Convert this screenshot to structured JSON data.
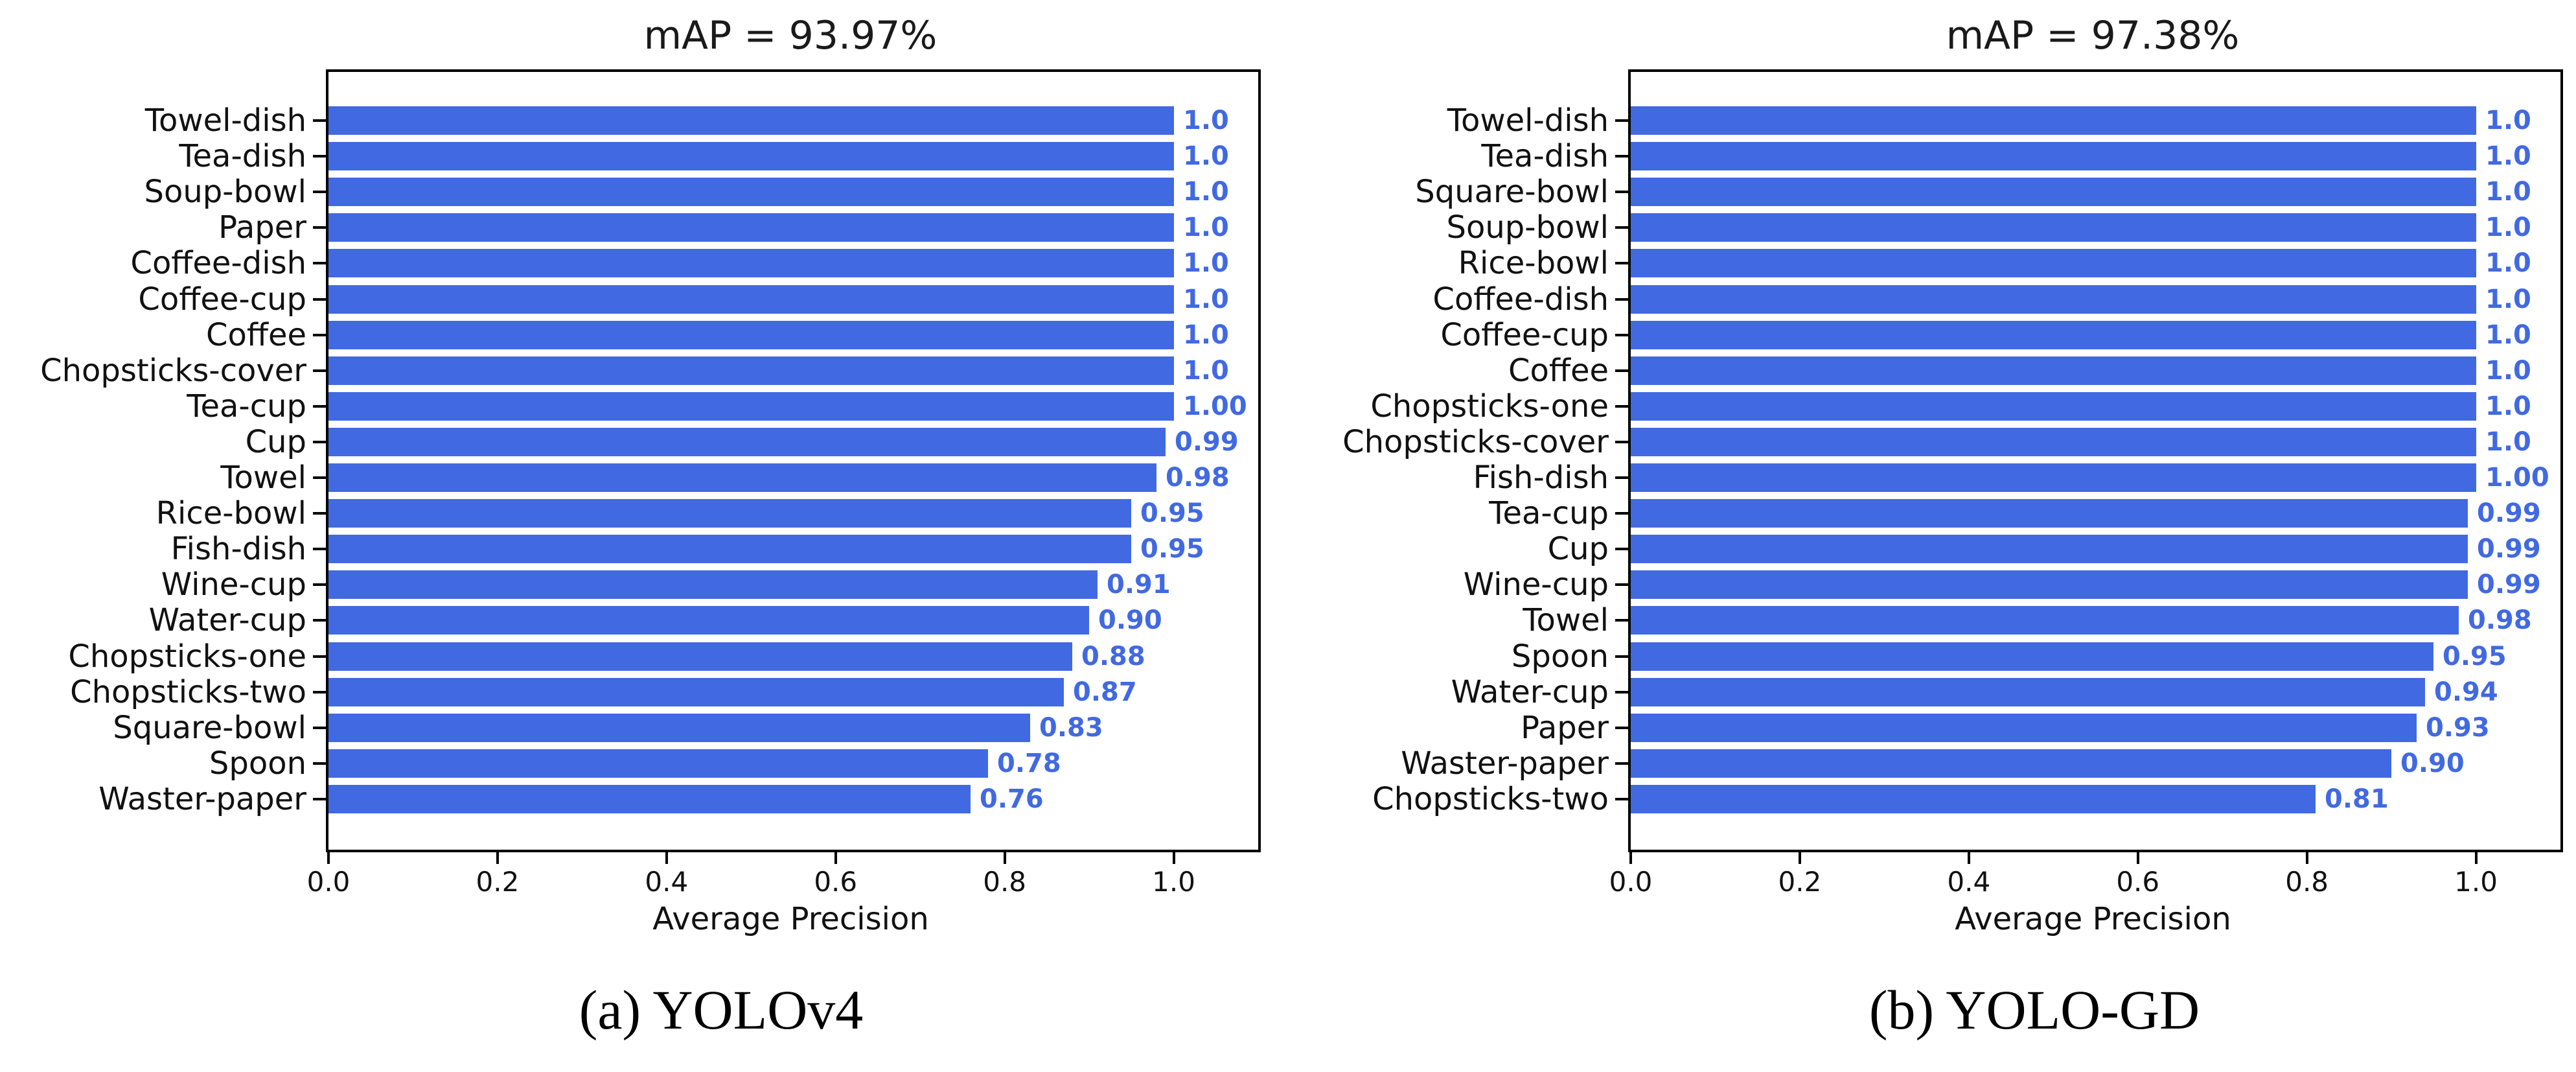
{
  "figure": {
    "background": "#ffffff",
    "bar_color": "#4169e1",
    "value_label_color": "#4169e1",
    "axis_color": "#000000"
  },
  "chart_data": [
    {
      "type": "bar",
      "orientation": "horizontal",
      "title": "mAP = 93.97%",
      "caption": "(a) YOLOv4",
      "xlabel": "Average Precision",
      "xlim": [
        0,
        1.1
      ],
      "xticks": [
        "0.0",
        "0.2",
        "0.4",
        "0.6",
        "0.8",
        "1.0"
      ],
      "grid": false,
      "legend": null,
      "categories": [
        "Towel-dish",
        "Tea-dish",
        "Soup-bowl",
        "Paper",
        "Coffee-dish",
        "Coffee-cup",
        "Coffee",
        "Chopsticks-cover",
        "Tea-cup",
        "Cup",
        "Towel",
        "Rice-bowl",
        "Fish-dish",
        "Wine-cup",
        "Water-cup",
        "Chopsticks-one",
        "Chopsticks-two",
        "Square-bowl",
        "Spoon",
        "Waster-paper"
      ],
      "values": [
        1.0,
        1.0,
        1.0,
        1.0,
        1.0,
        1.0,
        1.0,
        1.0,
        1.0,
        0.99,
        0.98,
        0.95,
        0.95,
        0.91,
        0.9,
        0.88,
        0.87,
        0.83,
        0.78,
        0.76
      ],
      "value_labels": [
        "1.0",
        "1.0",
        "1.0",
        "1.0",
        "1.0",
        "1.0",
        "1.0",
        "1.0",
        "1.00",
        "0.99",
        "0.98",
        "0.95",
        "0.95",
        "0.91",
        "0.90",
        "0.88",
        "0.87",
        "0.83",
        "0.78",
        "0.76"
      ]
    },
    {
      "type": "bar",
      "orientation": "horizontal",
      "title": "mAP = 97.38%",
      "caption": "(b) YOLO-GD",
      "xlabel": "Average Precision",
      "xlim": [
        0,
        1.1
      ],
      "xticks": [
        "0.0",
        "0.2",
        "0.4",
        "0.6",
        "0.8",
        "1.0"
      ],
      "grid": false,
      "legend": null,
      "categories": [
        "Towel-dish",
        "Tea-dish",
        "Square-bowl",
        "Soup-bowl",
        "Rice-bowl",
        "Coffee-dish",
        "Coffee-cup",
        "Coffee",
        "Chopsticks-one",
        "Chopsticks-cover",
        "Fish-dish",
        "Tea-cup",
        "Cup",
        "Wine-cup",
        "Towel",
        "Spoon",
        "Water-cup",
        "Paper",
        "Waster-paper",
        "Chopsticks-two"
      ],
      "values": [
        1.0,
        1.0,
        1.0,
        1.0,
        1.0,
        1.0,
        1.0,
        1.0,
        1.0,
        1.0,
        1.0,
        0.99,
        0.99,
        0.99,
        0.98,
        0.95,
        0.94,
        0.93,
        0.9,
        0.81
      ],
      "value_labels": [
        "1.0",
        "1.0",
        "1.0",
        "1.0",
        "1.0",
        "1.0",
        "1.0",
        "1.0",
        "1.0",
        "1.0",
        "1.00",
        "0.99",
        "0.99",
        "0.99",
        "0.98",
        "0.95",
        "0.94",
        "0.93",
        "0.90",
        "0.81"
      ]
    }
  ]
}
